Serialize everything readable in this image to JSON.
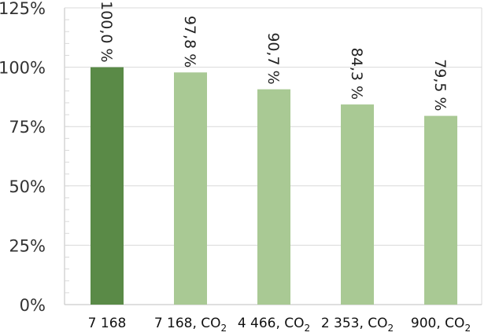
{
  "chart_data": {
    "type": "bar",
    "categories": [
      "7 168",
      "7 168, CO2",
      "4 466, CO2",
      "2 353, CO2",
      "900, CO2"
    ],
    "category_labels": [
      {
        "main": "7 168",
        "sub": ""
      },
      {
        "main": "7 168, CO",
        "sub": "2"
      },
      {
        "main": "4 466, CO",
        "sub": "2"
      },
      {
        "main": "2 353, CO",
        "sub": "2"
      },
      {
        "main": "900, CO",
        "sub": "2"
      }
    ],
    "values": [
      100.0,
      97.8,
      90.7,
      84.3,
      79.5
    ],
    "data_labels": [
      "100,0 %",
      "97,8 %",
      "90,7 %",
      "84,3 %",
      "79,5 %"
    ],
    "y_ticks": [
      "0%",
      "25%",
      "50%",
      "75%",
      "100%",
      "125%"
    ],
    "ylim": [
      0,
      125
    ],
    "grid": true,
    "colors": {
      "highlight": "#5a8a47",
      "bars": "#a9c994"
    }
  }
}
